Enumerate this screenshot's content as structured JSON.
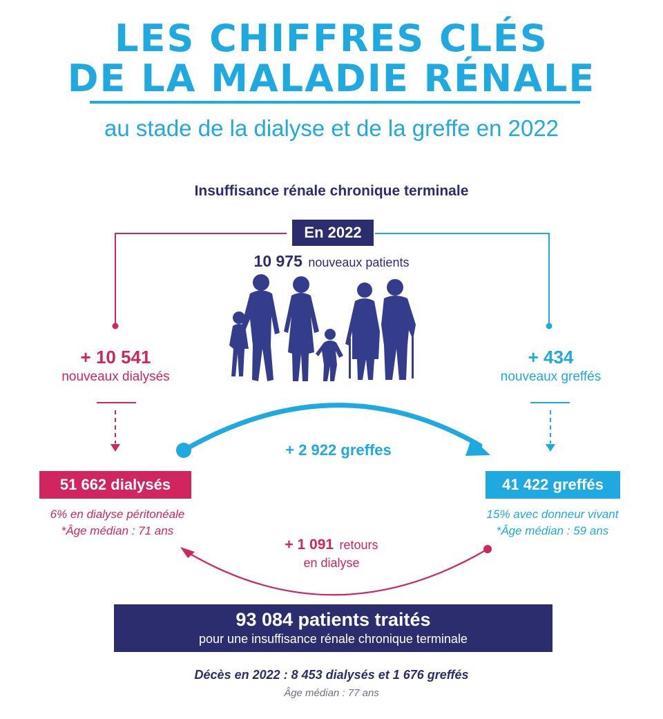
{
  "header": {
    "title_line1": "LES CHIFFRES CLÉS",
    "title_line2": "DE LA MALADIE RÉNALE",
    "subtitle": "au stade de la dialyse et de la greffe en 2022"
  },
  "section_title": "Insuffisance rénale chronique terminale",
  "year_badge": "En 2022",
  "new_patients": {
    "value": "10 975",
    "label": "nouveaux patients"
  },
  "dialysis": {
    "new_value": "+ 10 541",
    "new_label": "nouveaux dialysés",
    "total_label": "51 662 dialysés",
    "detail": "6% en dialyse péritonéale",
    "median_age": "*Âge médian : 71 ans"
  },
  "graft": {
    "new_value": "+ 434",
    "new_label": "nouveaux greffés",
    "total_label": "41 422 greffés",
    "detail": "15% avec donneur vivant",
    "median_age": "*Âge médian : 59 ans"
  },
  "transfer_to_graft": "+ 2 922 greffes",
  "return_to_dialysis": {
    "value": "+ 1 091",
    "label_a": "retours",
    "label_b": "en dialyse"
  },
  "total": {
    "headline": "93 084 patients traités",
    "sub": "pour une insuffisance rénale chronique terminale"
  },
  "deaths": {
    "line": "Décès en 2022 : 8 453 dialysés et 1 676 greffés",
    "median_age": "Âge médian : 77 ans"
  },
  "colors": {
    "blue": "#1fa9e1",
    "pink": "#d0255f",
    "navy": "#2b2d6e",
    "silhouette": "#343d8c"
  }
}
